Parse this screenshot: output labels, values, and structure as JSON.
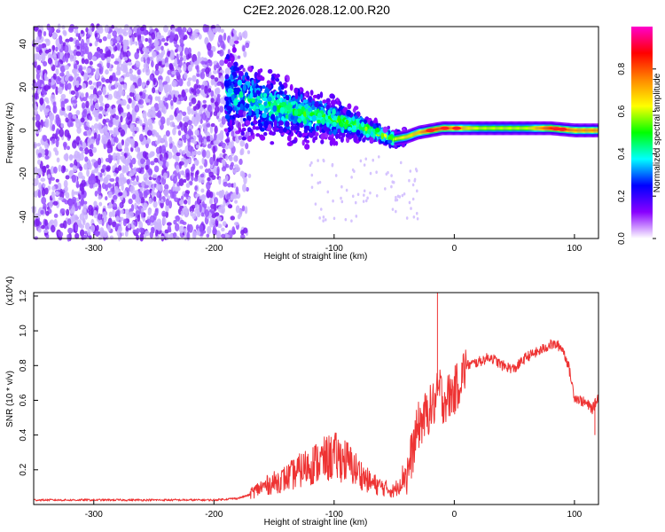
{
  "figure": {
    "title": "C2E2.2026.028.12.00.R20"
  },
  "chart_data": [
    {
      "type": "heatmap",
      "xlabel": "Height of straight line (km)",
      "ylabel": "Frequency (Hz)",
      "xlim": [
        -350,
        120
      ],
      "ylim": [
        -50,
        48
      ],
      "xticks": [
        -300,
        -200,
        -100,
        0,
        100
      ],
      "yticks": [
        -40,
        -20,
        0,
        20,
        40
      ],
      "colorbar": {
        "label": "Normalized spectral amplitude",
        "range": [
          0,
          1
        ],
        "ticks": [
          "0.0",
          "0.2",
          "0.4",
          "0.6",
          "0.8"
        ],
        "colormap": [
          "#ffffff",
          "#8800ff",
          "#0000ff",
          "#00ffff",
          "#00ff00",
          "#ffff00",
          "#ff8800",
          "#ff0000",
          "#ff00cc"
        ]
      },
      "ridge": {
        "x": [
          -190,
          -160,
          -140,
          -120,
          -100,
          -80,
          -60,
          -50,
          -40,
          -30,
          -20,
          -10,
          0,
          20,
          40,
          60,
          80,
          100,
          120
        ],
        "frequency": [
          18,
          12,
          10,
          7,
          5,
          2,
          -2,
          -4,
          -3,
          -1,
          0,
          1,
          1,
          1,
          1,
          1,
          1,
          0,
          0
        ],
        "amplitude": [
          0.3,
          0.35,
          0.4,
          0.4,
          0.45,
          0.5,
          0.5,
          0.55,
          0.6,
          0.65,
          0.8,
          0.75,
          0.7,
          0.55,
          0.55,
          0.55,
          0.8,
          0.7,
          0.7
        ]
      },
      "noise_region_km": [
        -350,
        -170
      ]
    },
    {
      "type": "line",
      "xlabel": "Height of straight line (km)",
      "ylabel": "SNR (10 * v/v)",
      "yscale_label": "(x10^4)",
      "xlim": [
        -350,
        120
      ],
      "ylim": [
        0,
        1.22
      ],
      "xticks": [
        -300,
        -200,
        -100,
        0,
        100
      ],
      "yticks": [
        0.2,
        0.4,
        0.6,
        0.8,
        1.0,
        1.2
      ],
      "color": "#ee3333",
      "series": [
        {
          "name": "SNR",
          "x": [
            -350,
            -320,
            -280,
            -240,
            -200,
            -180,
            -170,
            -160,
            -150,
            -140,
            -130,
            -120,
            -110,
            -100,
            -90,
            -80,
            -70,
            -60,
            -50,
            -40,
            -35,
            -30,
            -25,
            -20,
            -15,
            -12,
            -10,
            -5,
            0,
            5,
            10,
            20,
            30,
            40,
            50,
            60,
            70,
            80,
            85,
            90,
            95,
            100,
            105,
            110,
            115,
            120
          ],
          "y": [
            0.02,
            0.02,
            0.02,
            0.02,
            0.02,
            0.03,
            0.05,
            0.08,
            0.1,
            0.12,
            0.15,
            0.18,
            0.2,
            0.22,
            0.2,
            0.15,
            0.1,
            0.08,
            0.06,
            0.15,
            0.3,
            0.45,
            0.5,
            0.55,
            0.6,
            0.68,
            0.6,
            0.62,
            0.65,
            0.72,
            0.8,
            0.82,
            0.85,
            0.8,
            0.78,
            0.85,
            0.88,
            0.92,
            0.92,
            0.9,
            0.8,
            0.62,
            0.6,
            0.58,
            0.55,
            0.62
          ]
        }
      ],
      "spikes": [
        {
          "x": -14,
          "y": 1.22
        },
        {
          "x": 117,
          "y": 0.4
        }
      ]
    }
  ]
}
